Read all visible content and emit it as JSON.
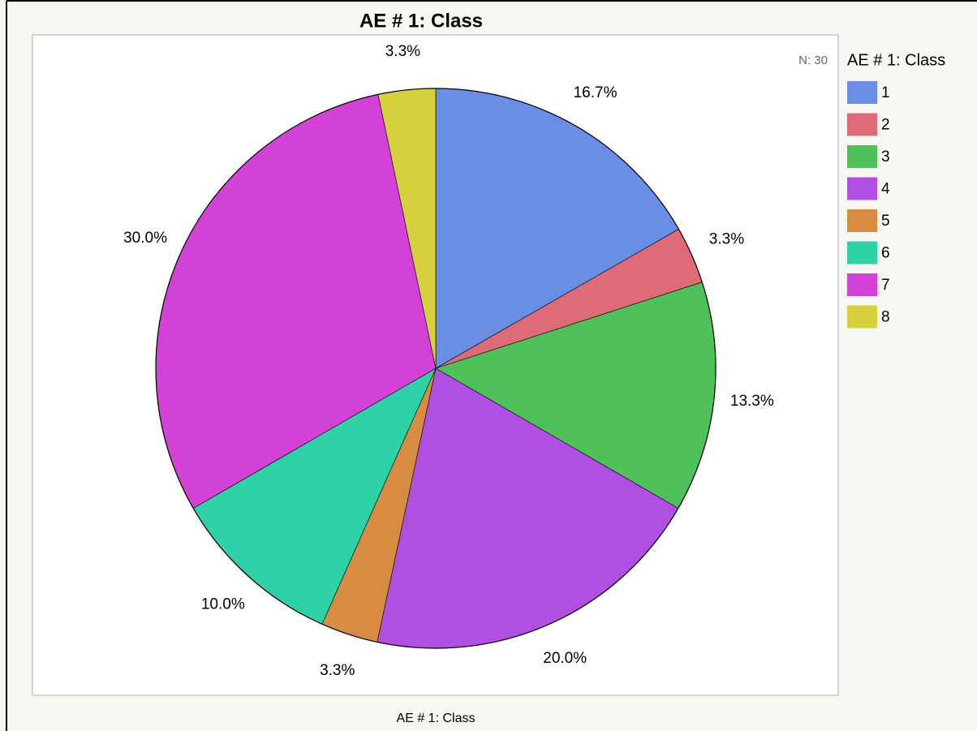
{
  "chart_data": {
    "type": "pie",
    "title": "AE # 1: Class",
    "xlabel": "AE # 1: Class",
    "annotation": "N: 30",
    "legend_title": "AE # 1: Class",
    "legend_position": "right",
    "categories": [
      "1",
      "2",
      "3",
      "4",
      "5",
      "6",
      "7",
      "8"
    ],
    "values": [
      16.7,
      3.3,
      13.3,
      20.0,
      3.3,
      10.0,
      30.0,
      3.3
    ],
    "value_labels": [
      "16.7%",
      "3.3%",
      "13.3%",
      "20.0%",
      "3.3%",
      "10.0%",
      "30.0%",
      "3.3%"
    ],
    "colors": [
      "#6a8ee3",
      "#dd6b78",
      "#4fc05a",
      "#b050e3",
      "#d88b42",
      "#2fd1a6",
      "#d342d6",
      "#d6cf3e"
    ]
  }
}
